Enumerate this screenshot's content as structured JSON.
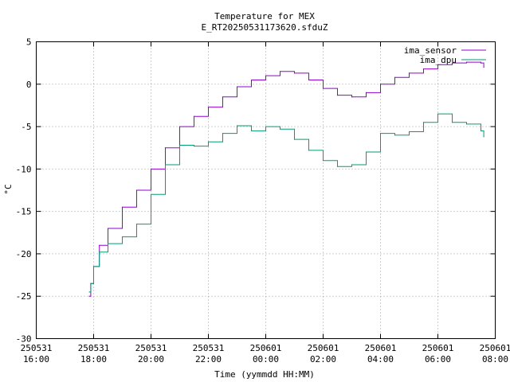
{
  "chart_data": {
    "type": "line",
    "title": "Temperature for MEX",
    "subtitle": "E_RT20250531173620.sfduZ",
    "xlabel": "Time (yymmdd HH:MM)",
    "ylabel": "°C",
    "ylim": [
      -30,
      5
    ],
    "xlim": [
      16,
      32
    ],
    "grid": true,
    "legend_position": "top-right",
    "y_ticks": [
      {
        "value": -30,
        "label": "-30"
      },
      {
        "value": -25,
        "label": "-25"
      },
      {
        "value": -20,
        "label": "-20"
      },
      {
        "value": -15,
        "label": "-15"
      },
      {
        "value": -10,
        "label": "-10"
      },
      {
        "value": -5,
        "label": "-5"
      },
      {
        "value": 0,
        "label": "0"
      },
      {
        "value": 5,
        "label": "5"
      }
    ],
    "x_ticks": [
      {
        "value": 16,
        "date": "250531",
        "time": "16:00"
      },
      {
        "value": 18,
        "date": "250531",
        "time": "18:00"
      },
      {
        "value": 20,
        "date": "250531",
        "time": "20:00"
      },
      {
        "value": 22,
        "date": "250531",
        "time": "22:00"
      },
      {
        "value": 24,
        "date": "250601",
        "time": "00:00"
      },
      {
        "value": 26,
        "date": "250601",
        "time": "02:00"
      },
      {
        "value": 28,
        "date": "250601",
        "time": "04:00"
      },
      {
        "value": 30,
        "date": "250601",
        "time": "06:00"
      },
      {
        "value": 32,
        "date": "250601",
        "time": "08:00"
      }
    ],
    "series": [
      {
        "name": "ima_sensor",
        "color": "#9400d3",
        "points": [
          [
            17.85,
            -25.0
          ],
          [
            17.9,
            -23.5
          ],
          [
            18.0,
            -21.5
          ],
          [
            18.2,
            -19.0
          ],
          [
            18.5,
            -17.0
          ],
          [
            19.0,
            -14.5
          ],
          [
            19.5,
            -12.5
          ],
          [
            20.0,
            -10.0
          ],
          [
            20.5,
            -7.5
          ],
          [
            21.0,
            -5.0
          ],
          [
            21.5,
            -3.8
          ],
          [
            22.0,
            -2.7
          ],
          [
            22.5,
            -1.5
          ],
          [
            23.0,
            -0.3
          ],
          [
            23.5,
            0.5
          ],
          [
            24.0,
            1.0
          ],
          [
            24.5,
            1.5
          ],
          [
            25.0,
            1.3
          ],
          [
            25.5,
            0.5
          ],
          [
            26.0,
            -0.5
          ],
          [
            26.5,
            -1.3
          ],
          [
            27.0,
            -1.5
          ],
          [
            27.5,
            -1.0
          ],
          [
            28.0,
            0.0
          ],
          [
            28.5,
            0.8
          ],
          [
            29.0,
            1.3
          ],
          [
            29.5,
            1.8
          ],
          [
            30.0,
            2.3
          ],
          [
            30.5,
            2.5
          ],
          [
            31.0,
            2.6
          ],
          [
            31.5,
            2.5
          ],
          [
            31.6,
            2.0
          ]
        ]
      },
      {
        "name": "ima_dpu",
        "color": "#009e73",
        "points": [
          [
            17.85,
            -24.5
          ],
          [
            17.9,
            -23.5
          ],
          [
            18.0,
            -21.5
          ],
          [
            18.2,
            -19.8
          ],
          [
            18.5,
            -18.8
          ],
          [
            19.0,
            -18.0
          ],
          [
            19.5,
            -16.5
          ],
          [
            20.0,
            -13.0
          ],
          [
            20.5,
            -9.5
          ],
          [
            21.0,
            -7.2
          ],
          [
            21.5,
            -7.3
          ],
          [
            22.0,
            -6.8
          ],
          [
            22.5,
            -5.8
          ],
          [
            23.0,
            -4.9
          ],
          [
            23.5,
            -5.5
          ],
          [
            24.0,
            -5.0
          ],
          [
            24.5,
            -5.3
          ],
          [
            25.0,
            -6.5
          ],
          [
            25.5,
            -7.8
          ],
          [
            26.0,
            -9.0
          ],
          [
            26.5,
            -9.7
          ],
          [
            27.0,
            -9.5
          ],
          [
            27.5,
            -8.0
          ],
          [
            28.0,
            -5.8
          ],
          [
            28.5,
            -6.0
          ],
          [
            29.0,
            -5.6
          ],
          [
            29.5,
            -4.5
          ],
          [
            30.0,
            -3.5
          ],
          [
            30.5,
            -4.5
          ],
          [
            31.0,
            -4.7
          ],
          [
            31.5,
            -5.5
          ],
          [
            31.6,
            -6.2
          ]
        ]
      }
    ]
  }
}
